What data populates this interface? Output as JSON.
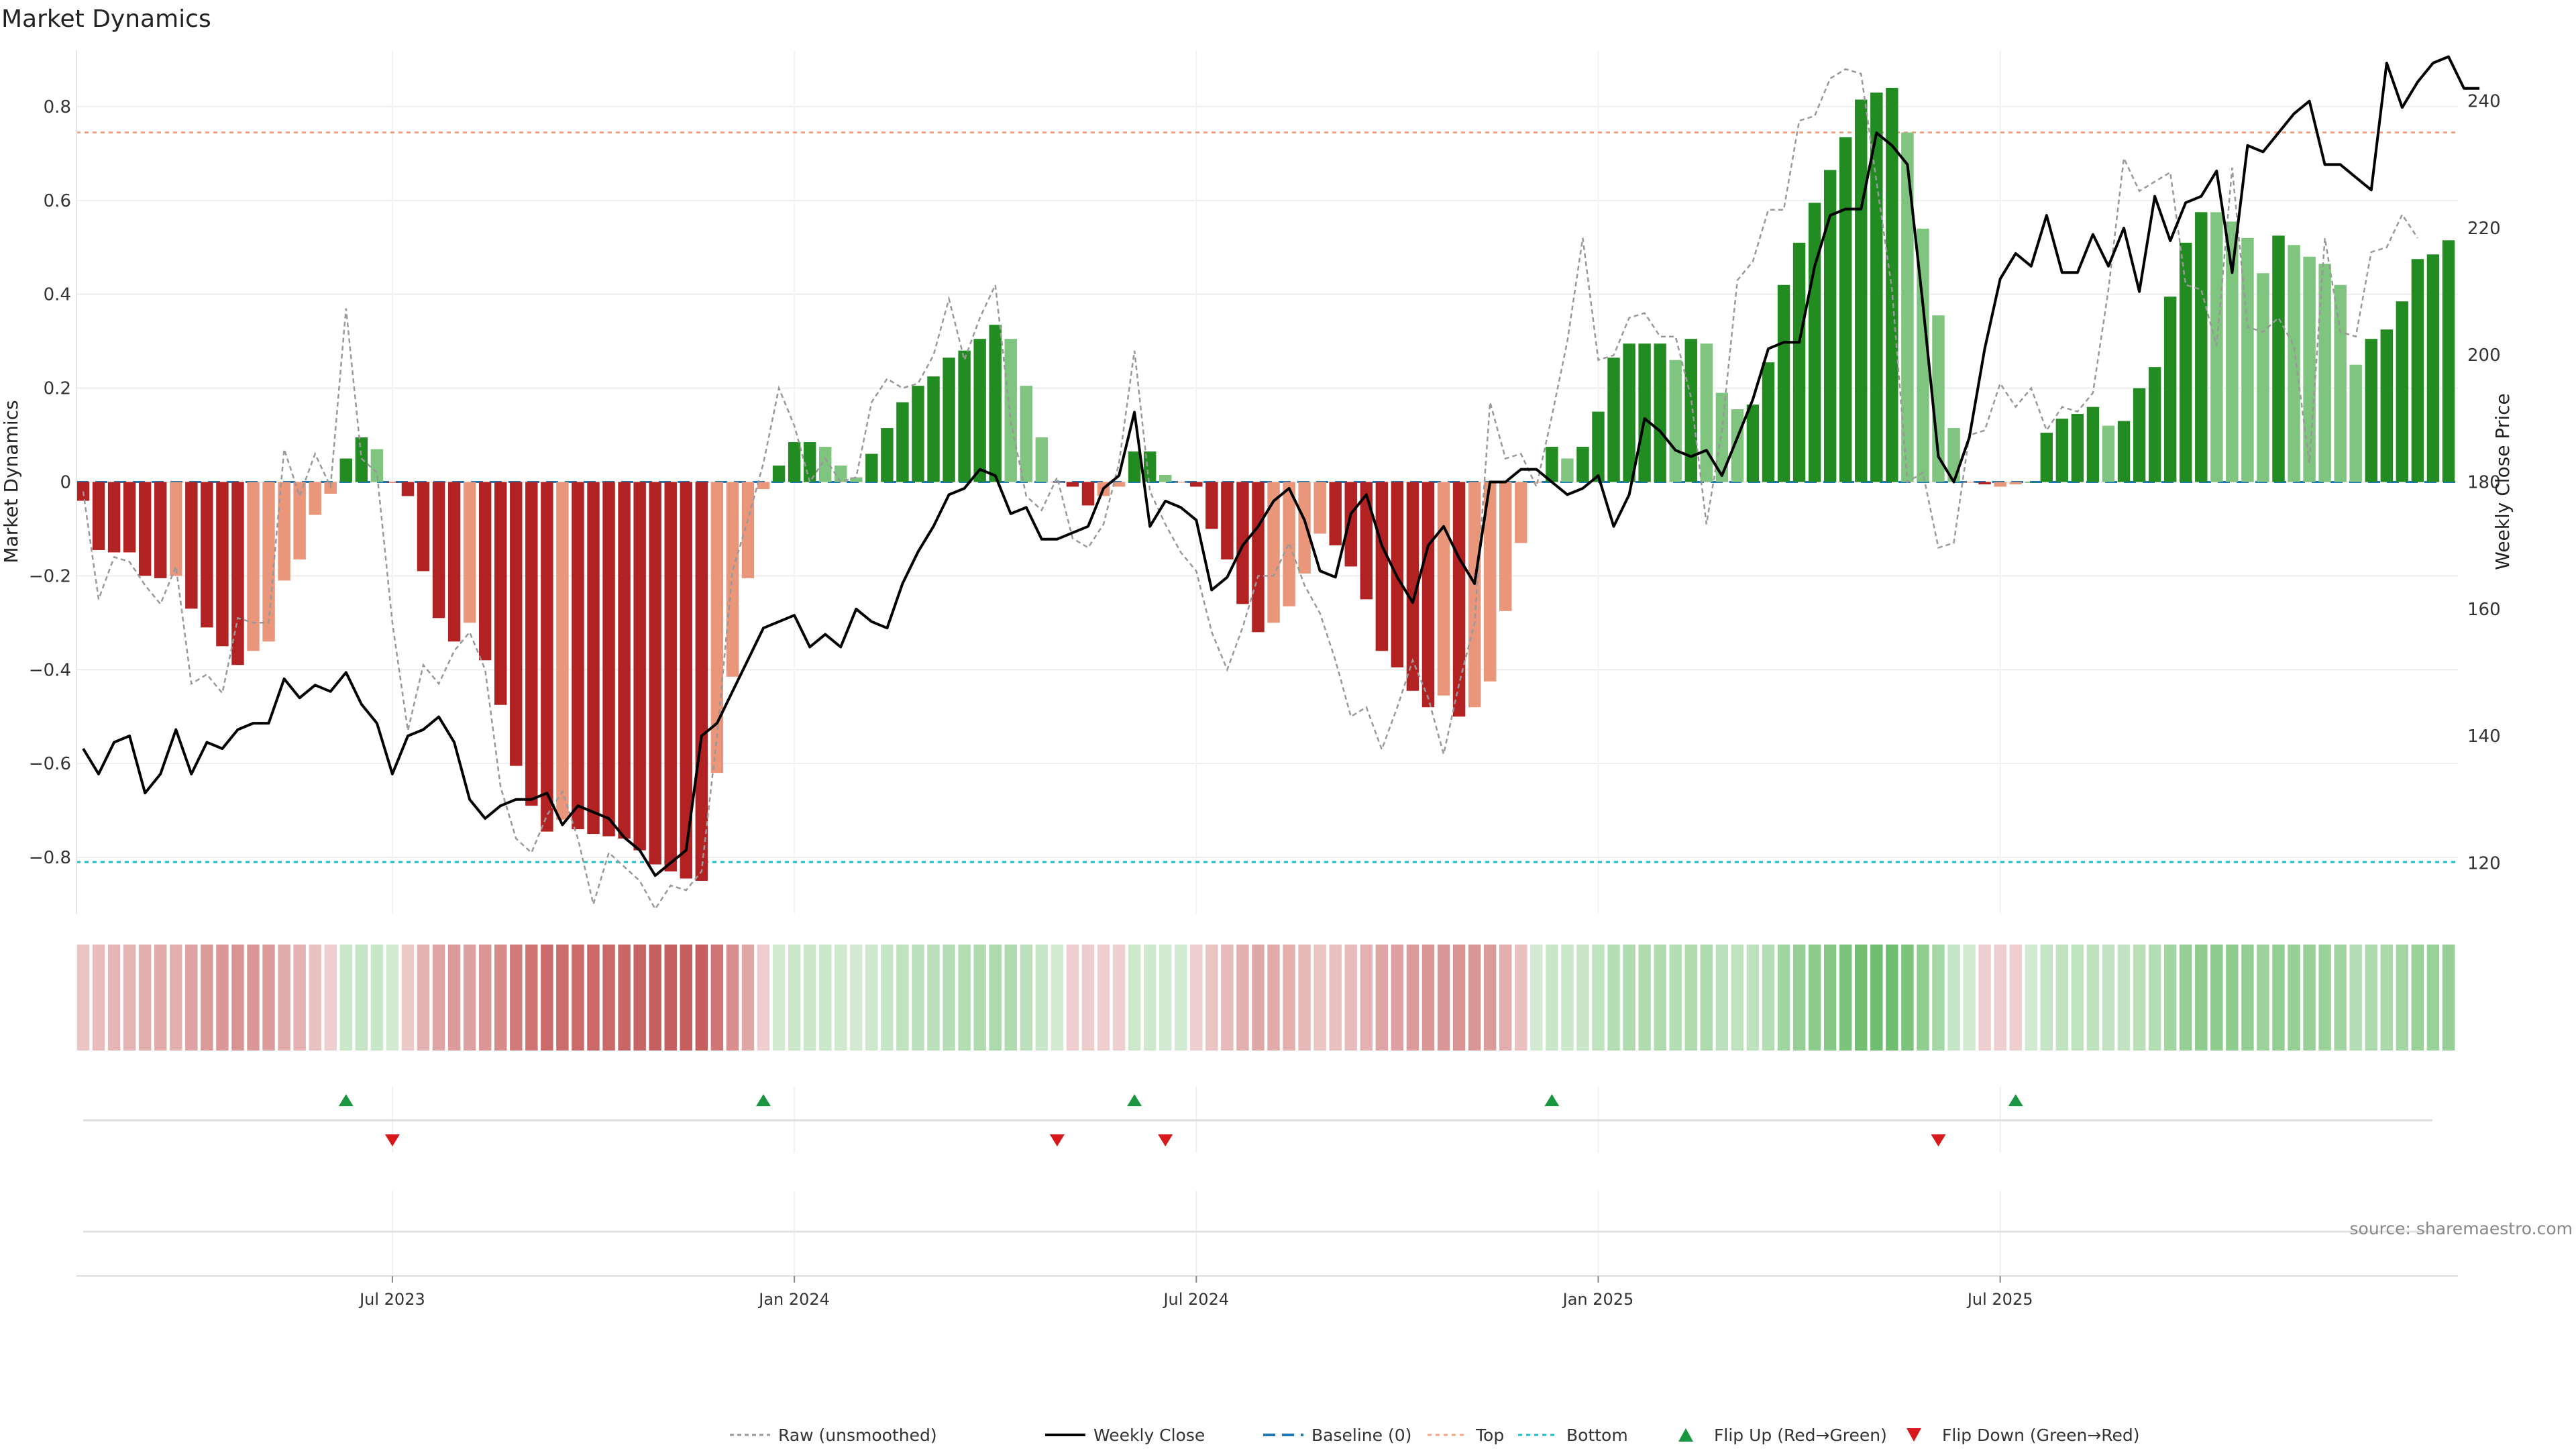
{
  "chart_data": {
    "type": "bar",
    "title": "Market Dynamics",
    "ylabel": "Market Dynamics",
    "y2label": "Weekly Close Price",
    "source": "source: sharemaestro.com",
    "ylim": [
      -0.92,
      0.92
    ],
    "y2lim": [
      112,
      248
    ],
    "x_ticks": [
      "Jul 2023",
      "Jan 2024",
      "Jul 2024",
      "Jan 2025",
      "Jul 2025"
    ],
    "y_ticks": [
      -0.8,
      -0.6,
      -0.4,
      -0.2,
      0,
      0.2,
      0.4,
      0.6,
      0.8
    ],
    "y_tick_labels": [
      "−0.8",
      "−0.6",
      "−0.4",
      "−0.2",
      "0",
      "0.2",
      "0.4",
      "0.6",
      "0.8"
    ],
    "y2_ticks": [
      120,
      140,
      160,
      180,
      200,
      220,
      240
    ],
    "y2_tick_labels": [
      "120",
      "140",
      "160",
      "180",
      "200",
      "220",
      "240"
    ],
    "top_threshold": 0.745,
    "bottom_threshold": -0.81,
    "grid": true,
    "legend_placement": "bottom-center",
    "legend": [
      {
        "label": "Raw (unsmoothed)",
        "kind": "raw",
        "color": "#999999"
      },
      {
        "label": "Weekly Close",
        "kind": "close",
        "color": "#000000"
      },
      {
        "label": "Baseline (0)",
        "kind": "baseline",
        "color": "#1f77b4"
      },
      {
        "label": "Top",
        "kind": "top",
        "color": "#f4a582"
      },
      {
        "label": "Bottom",
        "kind": "bottom",
        "color": "#17becf"
      },
      {
        "label": "Flip Up (Red→Green)",
        "kind": "flipup",
        "color": "#1a9641"
      },
      {
        "label": "Flip Down (Green→Red)",
        "kind": "flipdown",
        "color": "#d7191c"
      }
    ],
    "colors": {
      "dark_red": "#b22222",
      "light_red": "#e9967a",
      "dark_green": "#228b22",
      "light_green": "#7fc47f",
      "raw": "#999999",
      "close": "#000000",
      "baseline": "#1f77b4",
      "top": "#f4a582",
      "bottom": "#17becf",
      "flip_up": "#1a9641",
      "flip_down": "#d7191c"
    },
    "series": [
      {
        "name": "Market Dynamics",
        "values": [
          -0.04,
          -0.145,
          -0.15,
          -0.15,
          -0.2,
          -0.205,
          -0.2,
          -0.27,
          -0.31,
          -0.35,
          -0.39,
          -0.36,
          -0.34,
          -0.21,
          -0.165,
          -0.07,
          -0.025,
          0.05,
          0.095,
          0.07,
          0,
          -0.03,
          -0.19,
          -0.29,
          -0.34,
          -0.3,
          -0.38,
          -0.475,
          -0.605,
          -0.69,
          -0.745,
          -0.72,
          -0.74,
          -0.75,
          -0.755,
          -0.76,
          -0.785,
          -0.815,
          -0.83,
          -0.845,
          -0.85,
          -0.62,
          -0.415,
          -0.205,
          -0.015,
          0.035,
          0.085,
          0.085,
          0.075,
          0.035,
          0.01,
          0.06,
          0.115,
          0.17,
          0.205,
          0.225,
          0.265,
          0.28,
          0.305,
          0.335,
          0.305,
          0.205,
          0.095,
          0,
          -0.01,
          -0.05,
          -0.03,
          -0.01,
          0.065,
          0.065,
          0.015,
          0,
          -0.01,
          -0.1,
          -0.165,
          -0.26,
          -0.32,
          -0.3,
          -0.265,
          -0.195,
          -0.11,
          -0.135,
          -0.18,
          -0.25,
          -0.36,
          -0.395,
          -0.445,
          -0.48,
          -0.455,
          -0.5,
          -0.48,
          -0.425,
          -0.275,
          -0.13,
          0,
          0.075,
          0.05,
          0.075,
          0.15,
          0.265,
          0.295,
          0.295,
          0.295,
          0.26,
          0.305,
          0.295,
          0.19,
          0.155,
          0.165,
          0.255,
          0.42,
          0.51,
          0.595,
          0.665,
          0.735,
          0.815,
          0.83,
          0.84,
          0.745,
          0.54,
          0.355,
          0.115,
          0,
          -0.005,
          -0.01,
          -0.005,
          0,
          0.105,
          0.135,
          0.145,
          0.16,
          0.12,
          0.13,
          0.2,
          0.245,
          0.395,
          0.51,
          0.575,
          0.575,
          0.555,
          0.52,
          0.445,
          0.525,
          0.505,
          0.48,
          0.465,
          0.42,
          0.25,
          0.305,
          0.325,
          0.385,
          0.475,
          0.485,
          0.515
        ],
        "colors": [
          "#b22222",
          "#b22222",
          "#b22222",
          "#b22222",
          "#b22222",
          "#b22222",
          "#e9967a",
          "#b22222",
          "#b22222",
          "#b22222",
          "#b22222",
          "#e9967a",
          "#e9967a",
          "#e9967a",
          "#e9967a",
          "#e9967a",
          "#e9967a",
          "#228b22",
          "#228b22",
          "#7fc47f",
          "#b22222",
          "#b22222",
          "#b22222",
          "#b22222",
          "#b22222",
          "#e9967a",
          "#b22222",
          "#b22222",
          "#b22222",
          "#b22222",
          "#b22222",
          "#e9967a",
          "#b22222",
          "#b22222",
          "#b22222",
          "#b22222",
          "#b22222",
          "#b22222",
          "#b22222",
          "#b22222",
          "#b22222",
          "#e9967a",
          "#e9967a",
          "#e9967a",
          "#e9967a",
          "#228b22",
          "#228b22",
          "#228b22",
          "#7fc47f",
          "#7fc47f",
          "#7fc47f",
          "#228b22",
          "#228b22",
          "#228b22",
          "#228b22",
          "#228b22",
          "#228b22",
          "#228b22",
          "#228b22",
          "#228b22",
          "#7fc47f",
          "#7fc47f",
          "#7fc47f",
          "#e9967a",
          "#b22222",
          "#b22222",
          "#e9967a",
          "#e9967a",
          "#228b22",
          "#228b22",
          "#7fc47f",
          "#e9967a",
          "#b22222",
          "#b22222",
          "#b22222",
          "#b22222",
          "#b22222",
          "#e9967a",
          "#e9967a",
          "#e9967a",
          "#e9967a",
          "#b22222",
          "#b22222",
          "#b22222",
          "#b22222",
          "#b22222",
          "#b22222",
          "#b22222",
          "#e9967a",
          "#b22222",
          "#e9967a",
          "#e9967a",
          "#e9967a",
          "#e9967a",
          "#e9967a",
          "#228b22",
          "#7fc47f",
          "#228b22",
          "#228b22",
          "#228b22",
          "#228b22",
          "#228b22",
          "#228b22",
          "#7fc47f",
          "#228b22",
          "#7fc47f",
          "#7fc47f",
          "#7fc47f",
          "#228b22",
          "#228b22",
          "#228b22",
          "#228b22",
          "#228b22",
          "#228b22",
          "#228b22",
          "#228b22",
          "#228b22",
          "#228b22",
          "#7fc47f",
          "#7fc47f",
          "#7fc47f",
          "#7fc47f",
          "#e9967a",
          "#b22222",
          "#e9967a",
          "#e9967a",
          "#228b22",
          "#228b22",
          "#228b22",
          "#228b22",
          "#228b22",
          "#7fc47f",
          "#228b22",
          "#228b22",
          "#228b22",
          "#228b22",
          "#228b22",
          "#228b22",
          "#7fc47f",
          "#7fc47f",
          "#7fc47f",
          "#7fc47f",
          "#228b22",
          "#7fc47f",
          "#7fc47f",
          "#7fc47f",
          "#7fc47f",
          "#7fc47f",
          "#228b22",
          "#228b22",
          "#228b22",
          "#228b22",
          "#228b22",
          "#228b22"
        ]
      },
      {
        "name": "Raw (unsmoothed)",
        "values": [
          -0.02,
          -0.25,
          -0.16,
          -0.17,
          -0.22,
          -0.26,
          -0.18,
          -0.43,
          -0.41,
          -0.45,
          -0.29,
          -0.3,
          -0.3,
          0.07,
          -0.03,
          0.06,
          -0.01,
          0.37,
          0.05,
          0.02,
          -0.3,
          -0.53,
          -0.39,
          -0.43,
          -0.36,
          -0.32,
          -0.4,
          -0.65,
          -0.76,
          -0.79,
          -0.71,
          -0.66,
          -0.76,
          -0.9,
          -0.79,
          -0.82,
          -0.85,
          -0.91,
          -0.86,
          -0.87,
          -0.83,
          -0.54,
          -0.19,
          -0.08,
          0.04,
          0.2,
          0.12,
          0,
          0.05,
          0,
          0.01,
          0.17,
          0.22,
          0.2,
          0.21,
          0.27,
          0.39,
          0.26,
          0.35,
          0.42,
          0.13,
          -0.03,
          -0.06,
          0.01,
          -0.12,
          -0.14,
          -0.09,
          0.04,
          0.28,
          -0.02,
          -0.09,
          -0.15,
          -0.19,
          -0.32,
          -0.4,
          -0.31,
          -0.2,
          -0.2,
          -0.13,
          -0.22,
          -0.28,
          -0.38,
          -0.5,
          -0.48,
          -0.57,
          -0.48,
          -0.38,
          -0.46,
          -0.58,
          -0.43,
          -0.3,
          0.17,
          0.05,
          0.06,
          -0.01,
          0.14,
          0.3,
          0.52,
          0.26,
          0.27,
          0.35,
          0.36,
          0.31,
          0.31,
          0.18,
          -0.09,
          0.11,
          0.43,
          0.47,
          0.58,
          0.58,
          0.77,
          0.78,
          0.86,
          0.88,
          0.87,
          0.64,
          0.41,
          0,
          0.02,
          -0.14,
          -0.13,
          0.1,
          0.11,
          0.21,
          0.16,
          0.2,
          0.11,
          0.16,
          0.15,
          0.19,
          0.41,
          0.69,
          0.62,
          0.64,
          0.66,
          0.42,
          0.41,
          0.29,
          0.67,
          0.33,
          0.32,
          0.35,
          0.29,
          0.04,
          0.52,
          0.32,
          0.31,
          0.49,
          0.5,
          0.57,
          0.52
        ]
      },
      {
        "name": "Weekly Close",
        "values": [
          138,
          134,
          139,
          140,
          131,
          134,
          141,
          134,
          139,
          138,
          141,
          142,
          142,
          149,
          146,
          148,
          147,
          150,
          145,
          142,
          134,
          140,
          141,
          143,
          139,
          130,
          127,
          129,
          130,
          130,
          131,
          126,
          129,
          128,
          127,
          124,
          122,
          118,
          120,
          122,
          140,
          142,
          147,
          152,
          157,
          158,
          159,
          154,
          156,
          154,
          160,
          158,
          157,
          164,
          169,
          173,
          178,
          179,
          182,
          181,
          175,
          176,
          171,
          171,
          172,
          173,
          179,
          181,
          191,
          173,
          177,
          176,
          174,
          163,
          165,
          170,
          173,
          177,
          179,
          174,
          166,
          165,
          175,
          178,
          170,
          165,
          161,
          170,
          173,
          168,
          164,
          180,
          180,
          182,
          182,
          180,
          178,
          179,
          181,
          173,
          178,
          190,
          188,
          185,
          184,
          185,
          181,
          187,
          193,
          201,
          202,
          202,
          214,
          222,
          223,
          223,
          235,
          233,
          230,
          208,
          184,
          180,
          187,
          201,
          212,
          216,
          214,
          222,
          213,
          213,
          219,
          214,
          220,
          210,
          225,
          218,
          224,
          225,
          229,
          213,
          233,
          232,
          235,
          238,
          240,
          230,
          230,
          228,
          226,
          246,
          239,
          243,
          246,
          247,
          242,
          242
        ]
      },
      {
        "name": "Strip Intensity",
        "values": [
          0.27,
          0.3,
          0.33,
          0.34,
          0.37,
          0.38,
          0.36,
          0.42,
          0.45,
          0.47,
          0.49,
          0.47,
          0.45,
          0.38,
          0.35,
          0.28,
          0.22,
          0.25,
          0.27,
          0.26,
          0.22,
          0.25,
          0.35,
          0.41,
          0.45,
          0.43,
          0.48,
          0.53,
          0.6,
          0.64,
          0.67,
          0.66,
          0.67,
          0.68,
          0.68,
          0.69,
          0.7,
          0.72,
          0.72,
          0.73,
          0.73,
          0.62,
          0.51,
          0.4,
          0.22,
          0.22,
          0.25,
          0.25,
          0.25,
          0.23,
          0.22,
          0.24,
          0.27,
          0.3,
          0.32,
          0.33,
          0.35,
          0.36,
          0.38,
          0.39,
          0.38,
          0.32,
          0.26,
          0.22,
          0.22,
          0.23,
          0.22,
          0.22,
          0.24,
          0.24,
          0.22,
          0.22,
          0.22,
          0.27,
          0.31,
          0.36,
          0.4,
          0.38,
          0.36,
          0.32,
          0.27,
          0.29,
          0.31,
          0.35,
          0.41,
          0.43,
          0.46,
          0.48,
          0.47,
          0.49,
          0.48,
          0.45,
          0.37,
          0.29,
          0.22,
          0.26,
          0.25,
          0.26,
          0.3,
          0.36,
          0.38,
          0.38,
          0.38,
          0.36,
          0.38,
          0.38,
          0.32,
          0.3,
          0.31,
          0.36,
          0.45,
          0.5,
          0.55,
          0.58,
          0.62,
          0.67,
          0.68,
          0.68,
          0.62,
          0.52,
          0.42,
          0.28,
          0.22,
          0.22,
          0.22,
          0.22,
          0.22,
          0.27,
          0.29,
          0.3,
          0.31,
          0.29,
          0.29,
          0.33,
          0.36,
          0.44,
          0.5,
          0.54,
          0.54,
          0.53,
          0.51,
          0.47,
          0.51,
          0.5,
          0.49,
          0.48,
          0.45,
          0.36,
          0.39,
          0.4,
          0.43,
          0.48,
          0.48,
          0.5
        ]
      }
    ],
    "x_tick_positions": [
      20,
      46,
      72,
      98,
      124
    ],
    "flip_up_index": [
      17,
      44,
      68,
      95,
      125
    ],
    "flip_down_index": [
      20,
      63,
      70,
      120
    ]
  }
}
